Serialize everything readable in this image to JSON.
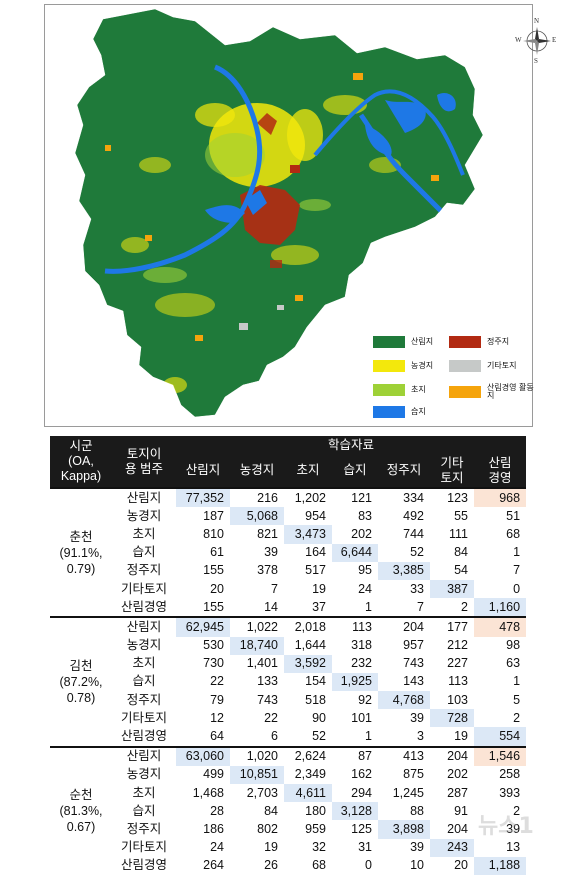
{
  "map": {
    "compass": {
      "n": "N",
      "s": "S",
      "e": "E",
      "w": "W"
    },
    "legend": [
      {
        "label": "산림지",
        "color": "#1f7a3a"
      },
      {
        "label": "정주지",
        "color": "#b22a12"
      },
      {
        "label": "농경지",
        "color": "#f3e80c"
      },
      {
        "label": "기타토지",
        "color": "#c6c9c8"
      },
      {
        "label": "초지",
        "color": "#9ed137"
      },
      {
        "label": "산림경영 활동지",
        "color": "#f5a40c"
      },
      {
        "label": "습지",
        "color": "#1e78e6"
      }
    ]
  },
  "table": {
    "header": {
      "region": "시군 (OA, Kappa)",
      "category": "토지이용 범주",
      "training": "학습자료",
      "columns": [
        "산림지",
        "농경지",
        "초지",
        "습지",
        "정주지",
        "기타 토지",
        "산림 경영"
      ]
    },
    "groups": [
      {
        "name": "춘천",
        "acc": "(91.1%,",
        "kappa": "0.79)",
        "rows": [
          {
            "label": "산림지",
            "values": [
              "77,352",
              "216",
              "1,202",
              "121",
              "334",
              "123",
              "968"
            ]
          },
          {
            "label": "농경지",
            "values": [
              "187",
              "5,068",
              "954",
              "83",
              "492",
              "55",
              "51"
            ]
          },
          {
            "label": "초지",
            "values": [
              "810",
              "821",
              "3,473",
              "202",
              "744",
              "111",
              "68"
            ]
          },
          {
            "label": "습지",
            "values": [
              "61",
              "39",
              "164",
              "6,644",
              "52",
              "84",
              "1"
            ]
          },
          {
            "label": "정주지",
            "values": [
              "155",
              "378",
              "517",
              "95",
              "3,385",
              "54",
              "7"
            ]
          },
          {
            "label": "기타토지",
            "values": [
              "20",
              "7",
              "19",
              "24",
              "33",
              "387",
              "0"
            ]
          },
          {
            "label": "산림경영",
            "values": [
              "155",
              "14",
              "37",
              "1",
              "7",
              "2",
              "1,160"
            ]
          }
        ]
      },
      {
        "name": "김천",
        "acc": "(87.2%,",
        "kappa": "0.78)",
        "rows": [
          {
            "label": "산림지",
            "values": [
              "62,945",
              "1,022",
              "2,018",
              "113",
              "204",
              "177",
              "478"
            ]
          },
          {
            "label": "농경지",
            "values": [
              "530",
              "18,740",
              "1,644",
              "318",
              "957",
              "212",
              "98"
            ]
          },
          {
            "label": "초지",
            "values": [
              "730",
              "1,401",
              "3,592",
              "232",
              "743",
              "227",
              "63"
            ]
          },
          {
            "label": "습지",
            "values": [
              "22",
              "133",
              "154",
              "1,925",
              "143",
              "113",
              "1"
            ]
          },
          {
            "label": "정주지",
            "values": [
              "79",
              "743",
              "518",
              "92",
              "4,768",
              "103",
              "5"
            ]
          },
          {
            "label": "기타토지",
            "values": [
              "12",
              "22",
              "90",
              "101",
              "39",
              "728",
              "2"
            ]
          },
          {
            "label": "산림경영",
            "values": [
              "64",
              "6",
              "52",
              "1",
              "3",
              "19",
              "554"
            ]
          }
        ]
      },
      {
        "name": "순천",
        "acc": "(81.3%,",
        "kappa": "0.67)",
        "rows": [
          {
            "label": "산림지",
            "values": [
              "63,060",
              "1,020",
              "2,624",
              "87",
              "413",
              "204",
              "1,546"
            ]
          },
          {
            "label": "농경지",
            "values": [
              "499",
              "10,851",
              "2,349",
              "162",
              "875",
              "202",
              "258"
            ]
          },
          {
            "label": "초지",
            "values": [
              "1,468",
              "2,703",
              "4,611",
              "294",
              "1,245",
              "287",
              "393"
            ]
          },
          {
            "label": "습지",
            "values": [
              "28",
              "84",
              "180",
              "3,128",
              "88",
              "91",
              "2"
            ]
          },
          {
            "label": "정주지",
            "values": [
              "186",
              "802",
              "959",
              "125",
              "3,898",
              "204",
              "39"
            ]
          },
          {
            "label": "기타토지",
            "values": [
              "24",
              "19",
              "32",
              "31",
              "39",
              "243",
              "13"
            ]
          },
          {
            "label": "산림경영",
            "values": [
              "264",
              "26",
              "68",
              "0",
              "10",
              "20",
              "1,188"
            ]
          }
        ]
      }
    ]
  },
  "watermark": "뉴스1"
}
